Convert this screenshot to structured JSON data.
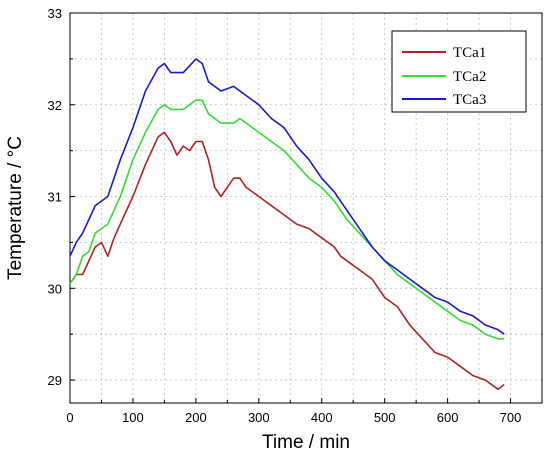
{
  "chart_data": {
    "type": "line",
    "xlabel": "Time / min",
    "ylabel": "Temperature / °C",
    "xlim": [
      0,
      750
    ],
    "ylim": [
      28.75,
      33
    ],
    "grid": true,
    "legend_position": "top-right",
    "x_ticks": [
      0,
      100,
      200,
      300,
      400,
      500,
      600,
      700
    ],
    "x_tick_labels": [
      "0",
      "100",
      "200",
      "300",
      "400",
      "500",
      "600",
      "700"
    ],
    "y_ticks": [
      29,
      30,
      31,
      32,
      33
    ],
    "y_tick_labels": [
      "29",
      "30",
      "31",
      "32",
      "33"
    ],
    "series": [
      {
        "name": "TCa1",
        "color": "#b22222",
        "x": [
          0,
          10,
          20,
          30,
          40,
          50,
          60,
          70,
          80,
          100,
          120,
          140,
          150,
          160,
          170,
          180,
          190,
          200,
          210,
          220,
          230,
          240,
          250,
          260,
          270,
          280,
          300,
          320,
          340,
          360,
          380,
          400,
          420,
          430,
          440,
          460,
          480,
          500,
          520,
          540,
          560,
          580,
          600,
          620,
          640,
          660,
          680,
          690
        ],
        "y": [
          30.05,
          30.15,
          30.15,
          30.3,
          30.45,
          30.5,
          30.35,
          30.55,
          30.7,
          31.0,
          31.35,
          31.65,
          31.7,
          31.6,
          31.45,
          31.55,
          31.5,
          31.6,
          31.6,
          31.4,
          31.1,
          31.0,
          31.1,
          31.2,
          31.2,
          31.1,
          31.0,
          30.9,
          30.8,
          30.7,
          30.65,
          30.55,
          30.45,
          30.35,
          30.3,
          30.2,
          30.1,
          29.9,
          29.8,
          29.6,
          29.45,
          29.3,
          29.25,
          29.15,
          29.05,
          29.0,
          28.9,
          28.95
        ]
      },
      {
        "name": "TCa2",
        "color": "#33dd33",
        "x": [
          0,
          10,
          20,
          30,
          40,
          50,
          60,
          80,
          100,
          120,
          140,
          150,
          160,
          180,
          200,
          210,
          220,
          240,
          260,
          270,
          280,
          300,
          320,
          340,
          360,
          380,
          400,
          420,
          440,
          460,
          480,
          500,
          520,
          540,
          560,
          580,
          600,
          620,
          640,
          660,
          680,
          690
        ],
        "y": [
          30.05,
          30.15,
          30.35,
          30.4,
          30.6,
          30.65,
          30.7,
          31.0,
          31.4,
          31.7,
          31.95,
          32.0,
          31.95,
          31.95,
          32.05,
          32.05,
          31.9,
          31.8,
          31.8,
          31.85,
          31.8,
          31.7,
          31.6,
          31.5,
          31.35,
          31.2,
          31.1,
          30.95,
          30.75,
          30.6,
          30.45,
          30.3,
          30.15,
          30.05,
          29.95,
          29.85,
          29.75,
          29.65,
          29.6,
          29.5,
          29.45,
          29.45
        ]
      },
      {
        "name": "TCa3",
        "color": "#1a1ad6",
        "x": [
          0,
          10,
          20,
          30,
          40,
          50,
          60,
          80,
          100,
          120,
          140,
          150,
          160,
          180,
          200,
          210,
          220,
          240,
          260,
          270,
          280,
          300,
          320,
          340,
          360,
          380,
          400,
          420,
          440,
          460,
          480,
          500,
          520,
          540,
          560,
          580,
          600,
          620,
          640,
          660,
          680,
          690
        ],
        "y": [
          30.35,
          30.5,
          30.6,
          30.75,
          30.9,
          30.95,
          31.0,
          31.4,
          31.75,
          32.15,
          32.4,
          32.45,
          32.35,
          32.35,
          32.5,
          32.45,
          32.25,
          32.15,
          32.2,
          32.15,
          32.1,
          32.0,
          31.85,
          31.75,
          31.55,
          31.4,
          31.2,
          31.05,
          30.85,
          30.65,
          30.45,
          30.3,
          30.2,
          30.1,
          30.0,
          29.9,
          29.85,
          29.75,
          29.7,
          29.6,
          29.55,
          29.5
        ]
      }
    ]
  }
}
